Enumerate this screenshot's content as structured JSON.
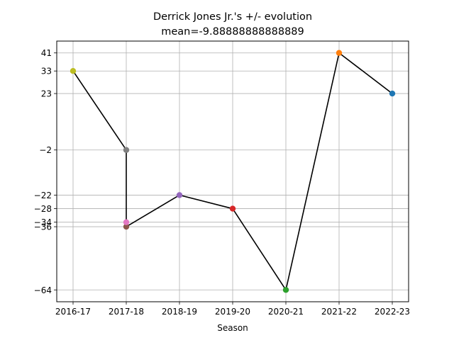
{
  "chart_data": {
    "type": "line",
    "title": "Derrick Jones Jr.'s +/- evolution",
    "subtitle": "mean=-9.88888888888889",
    "xlabel": "Season",
    "ylabel": "",
    "categories": [
      "2016-17",
      "2017-18",
      "2018-19",
      "2019-20",
      "2020-21",
      "2021-22",
      "2022-23"
    ],
    "yticks": [
      41,
      33,
      23,
      -2,
      -22,
      -28,
      -34,
      -36,
      -64
    ],
    "ylim": [
      -69.25,
      46.25
    ],
    "grid": true,
    "line_color": "#000000",
    "points": [
      {
        "x": "2022-23",
        "y": 23,
        "color": "#1f77b4"
      },
      {
        "x": "2021-22",
        "y": 41,
        "color": "#ff7f0e"
      },
      {
        "x": "2020-21",
        "y": -64,
        "color": "#2ca02c"
      },
      {
        "x": "2019-20",
        "y": -28,
        "color": "#d62728"
      },
      {
        "x": "2018-19",
        "y": -22,
        "color": "#9467bd"
      },
      {
        "x": "2017-18",
        "y": -36,
        "color": "#8c564b"
      },
      {
        "x": "2017-18",
        "y": -34,
        "color": "#e377c2"
      },
      {
        "x": "2017-18",
        "y": -2,
        "color": "#7f7f7f"
      },
      {
        "x": "2016-17",
        "y": 33,
        "color": "#bcbd22"
      }
    ]
  }
}
